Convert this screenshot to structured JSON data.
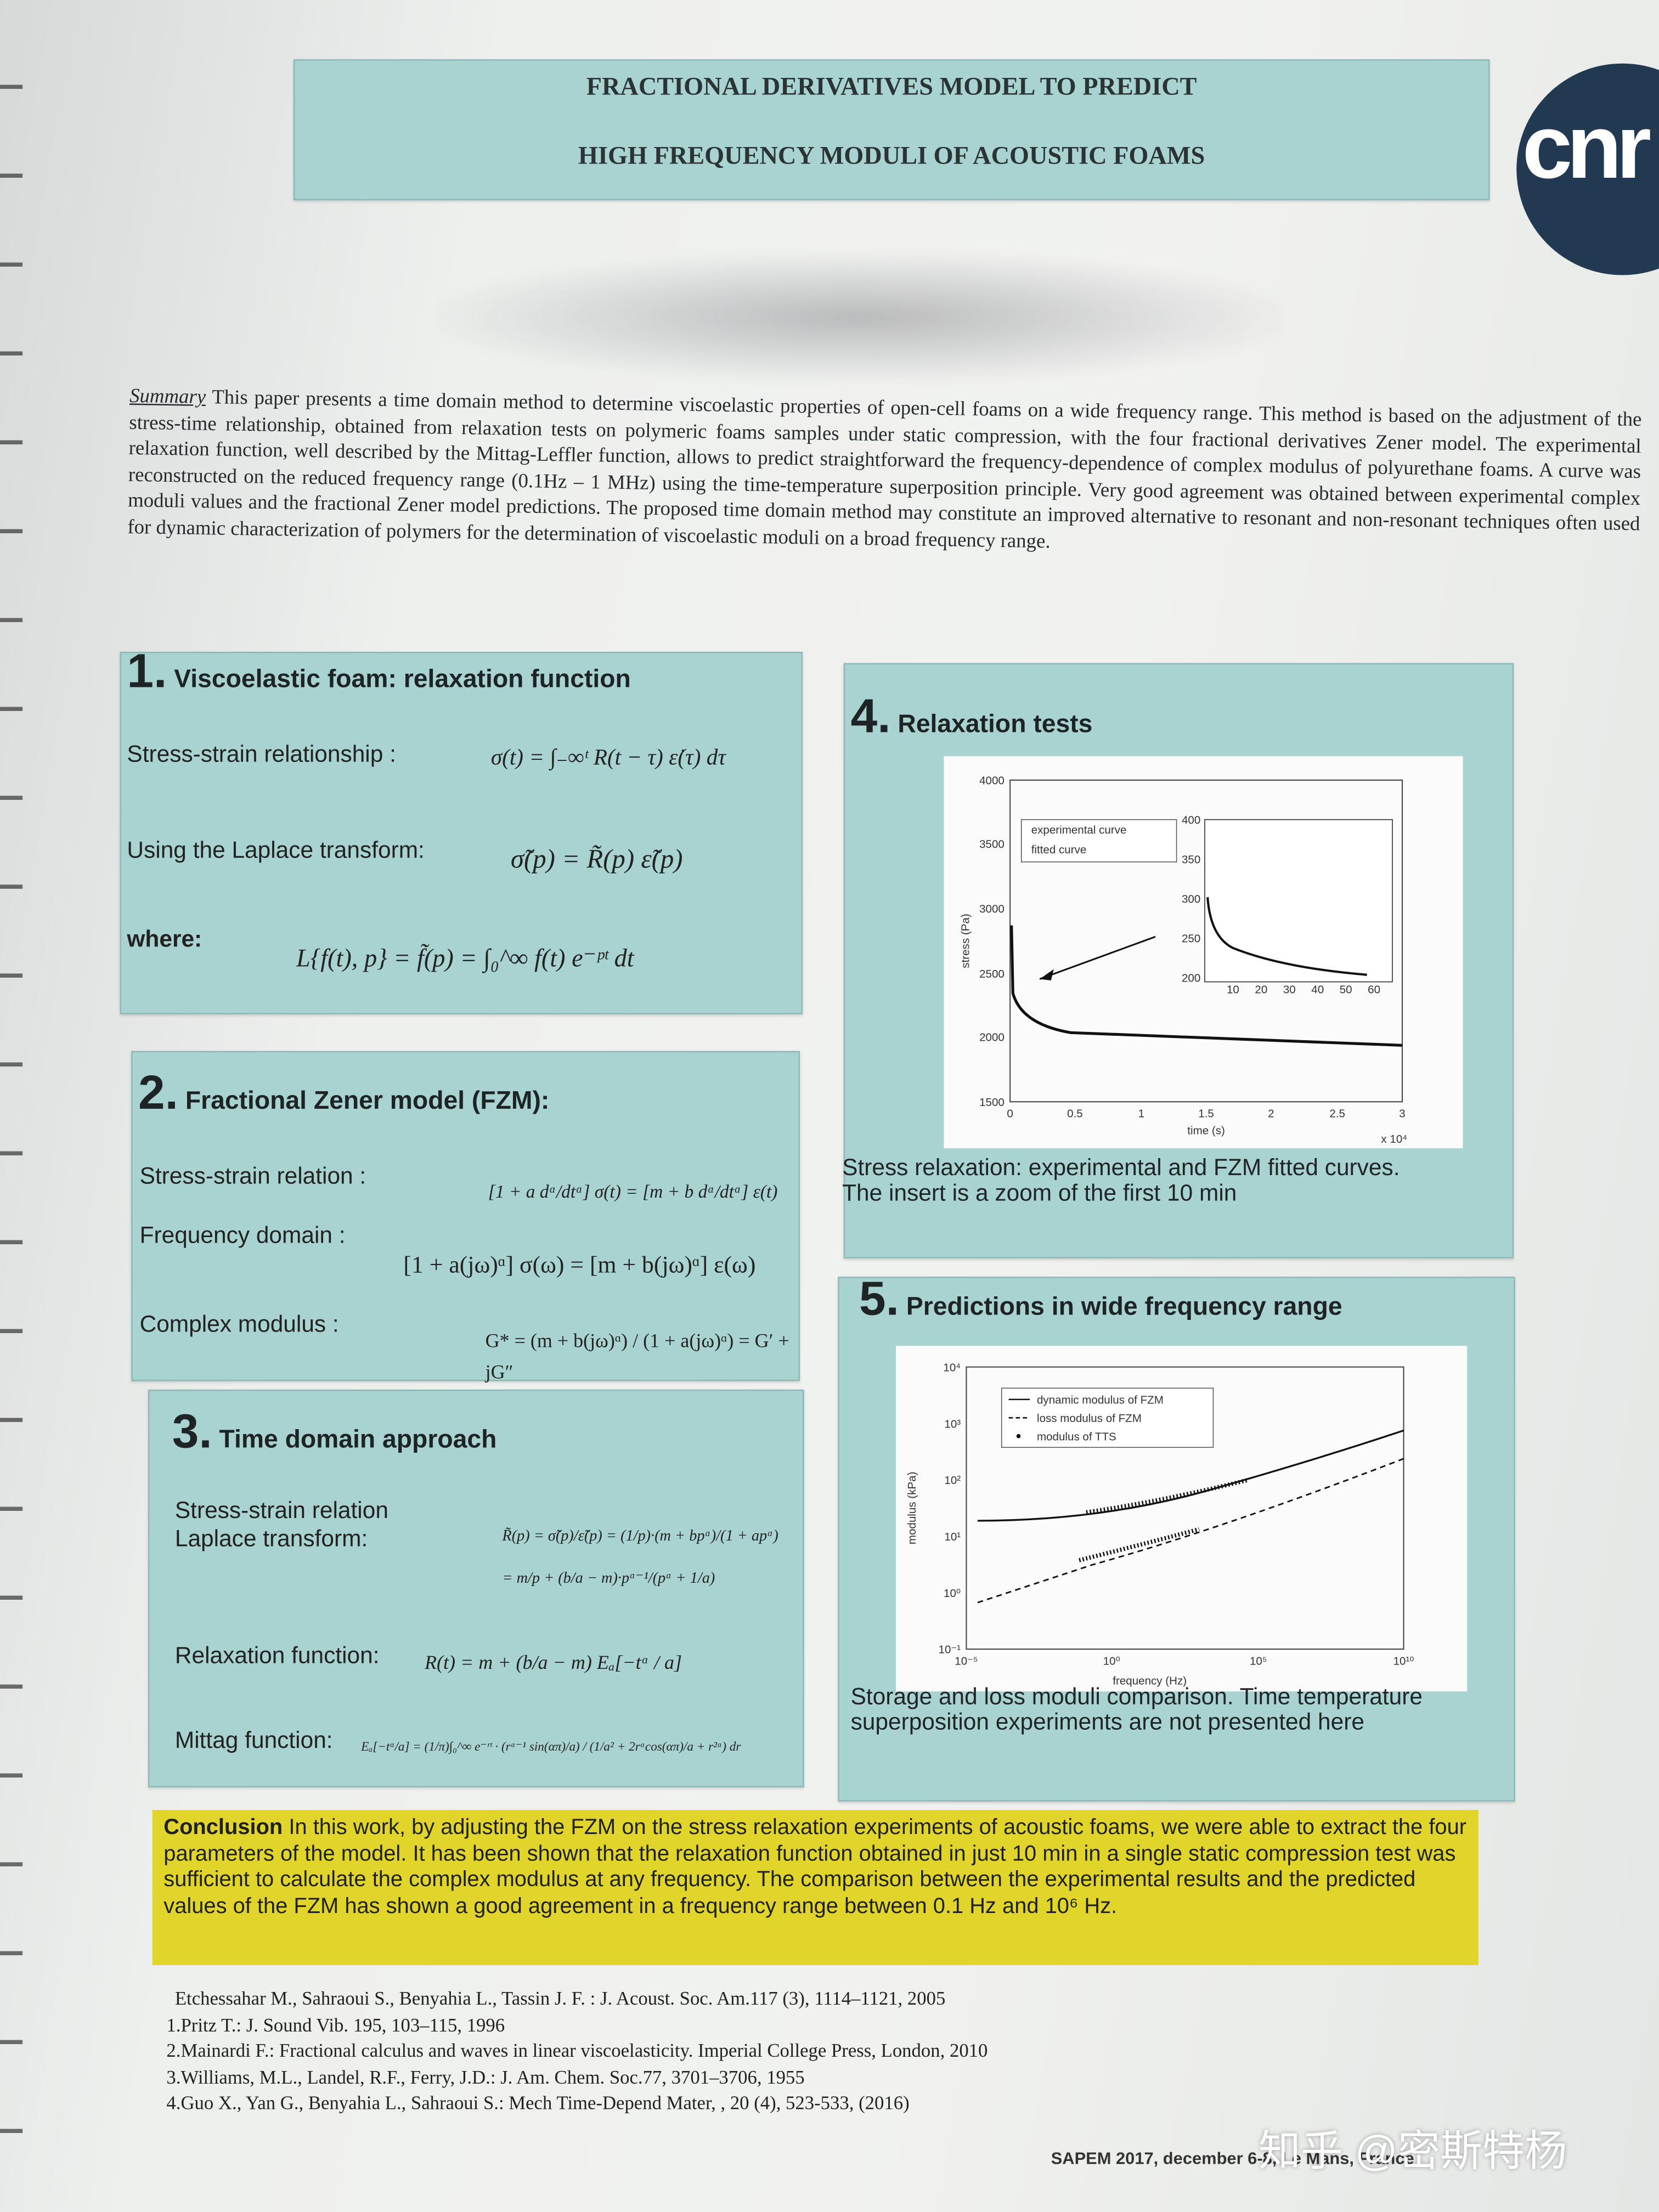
{
  "header": {
    "title_line1": "FRACTIONAL DERIVATIVES MODEL TO PREDICT",
    "title_line2": "HIGH FREQUENCY MODULI OF ACOUSTIC FOAMS",
    "logo": "cnr"
  },
  "summary": {
    "label": "Summary",
    "text": "This paper presents a time domain method to determine viscoelastic properties of open-cell foams on a wide frequency range. This method is based on the adjustment of the stress-time relationship, obtained from relaxation tests on polymeric foams samples under static compression, with the four fractional derivatives Zener model. The experimental relaxation function, well described by the Mittag-Leffler function, allows to predict straightforward the frequency-dependence of complex modulus of polyurethane foams. A curve was reconstructed on the reduced frequency range (0.1Hz – 1 MHz) using the time-temperature superposition principle. Very good agreement was obtained between experimental complex moduli values and the fractional Zener model predictions. The proposed time domain method may constitute an improved alternative to resonant and non-resonant techniques often used for dynamic characterization of polymers for the determination of viscoelastic moduli on a broad frequency range."
  },
  "sections": [
    {
      "number": "1.",
      "title": "Viscoelastic foam: relaxation function",
      "rows": [
        {
          "label": "Stress-strain relationship :",
          "formula": "σ(t) = ∫₋∞ᵗ R(t − τ) ε̇(τ) dτ"
        },
        {
          "label": "Using the Laplace transform:",
          "formula": "σ̃(p) = R̃(p) ε̃(p)"
        },
        {
          "label": "where:",
          "formula": "L{f(t), p} = f̃(p) = ∫₀^∞ f(t) e⁻ᵖᵗ dt"
        }
      ]
    },
    {
      "number": "2.",
      "title": "Fractional Zener model  (FZM):",
      "rows": [
        {
          "label": "Stress-strain relation :",
          "formula": "[1 + a dᵅ/dtᵅ] σ(t) = [m + b dᵅ/dtᵅ] ε(t)"
        },
        {
          "label": "Frequency domain :",
          "formula": "[1 + a(jω)ᵅ] σ(ω) = [m + b(jω)ᵅ] ε(ω)"
        },
        {
          "label": "Complex modulus :",
          "formula": "G* = (m + b(jω)ᵅ) / (1 + a(jω)ᵅ) = G′ + jG″"
        }
      ]
    },
    {
      "number": "3.",
      "title": "Time domain approach",
      "rows": [
        {
          "label": "Stress-strain relation\nLaplace transform:",
          "formula": "R̃(p) = σ̃(p)/ε̃(p) = (1/p)·(m + bpᵅ)/(1 + apᵅ)\n= m/p + (b/a − m)·pᵅ⁻¹/(pᵅ + 1/a)"
        },
        {
          "label": "Relaxation function:",
          "formula": "R(t) = m + (b/a − m) Eₐ[−tᵅ / a]"
        },
        {
          "label": "Mittag function:",
          "formula": "Eₐ[−tᵅ/a] = (1/π)∫₀^∞ e⁻ʳᵗ · (rᵅ⁻¹ sin(απ)/a) / (1/a² + 2rᵅcos(απ)/a + r²ᵅ) dr"
        }
      ]
    },
    {
      "number": "4.",
      "title": "Relaxation tests"
    },
    {
      "number": "5.",
      "title": "Predictions in wide frequency range"
    }
  ],
  "figure4": {
    "legend": [
      "experimental curve",
      "fitted curve"
    ],
    "y_label": "stress (Pa)",
    "x_label": "time (s)",
    "x_multiplier": "x 10⁴",
    "yticks": [
      "4000",
      "3500",
      "3000",
      "2500",
      "2000",
      "1500"
    ],
    "xticks": [
      "0",
      "0.5",
      "1",
      "1.5",
      "2",
      "2.5",
      "3"
    ],
    "inset_yticks": [
      "400",
      "350",
      "300",
      "250",
      "200"
    ],
    "inset_xticks": [
      "10",
      "20",
      "30",
      "40",
      "50",
      "60"
    ],
    "caption": "Stress relaxation: experimental and FZM fitted curves.\nThe insert is a zoom of the first 10 min"
  },
  "figure5": {
    "legend": [
      "dynamic modulus of FZM",
      "loss modulus of FZM",
      "modulus of TTS"
    ],
    "y_label": "modulus (kPa)",
    "x_label": "frequency (Hz)",
    "yticks": [
      "10⁴",
      "10³",
      "10²",
      "10¹",
      "10⁰",
      "10⁻¹"
    ],
    "xticks": [
      "10⁻⁵",
      "10⁰",
      "10⁵",
      "10¹⁰"
    ],
    "caption": "Storage and loss moduli comparison. Time temperature superposition experiments are not presented here"
  },
  "conclusion": {
    "label": "Conclusion",
    "text": "In this work, by adjusting the FZM on the stress relaxation experiments of acoustic foams, we were able to extract the four parameters of the model. It has been shown that the relaxation function obtained in just 10 min in a single static compression test was sufficient to calculate the complex modulus at any frequency. The comparison between the experimental results and the predicted values of the FZM has shown a good agreement in a frequency range between 0.1 Hz and 10⁶ Hz."
  },
  "references": [
    "Etchessahar M., Sahraoui S., Benyahia L., Tassin J. F. : J. Acoust. Soc. Am.117 (3), 1114–1121, 2005",
    "1.Pritz T.: J. Sound Vib. 195, 103–115, 1996",
    "2.Mainardi F.: Fractional calculus and waves in linear viscoelasticity. Imperial College Press, London, 2010",
    "3.Williams, M.L., Landel, R.F., Ferry, J.D.: J. Am. Chem. Soc.77, 3701–3706, 1955",
    "4.Guo X., Yan G., Benyahia L., Sahraoui S.: Mech Time-Depend Mater, , 20 (4), 523-533, (2016)"
  ],
  "footer": "SAPEM 2017, december 6-8, Le Mans, France",
  "watermark": "知乎 @密斯特杨"
}
